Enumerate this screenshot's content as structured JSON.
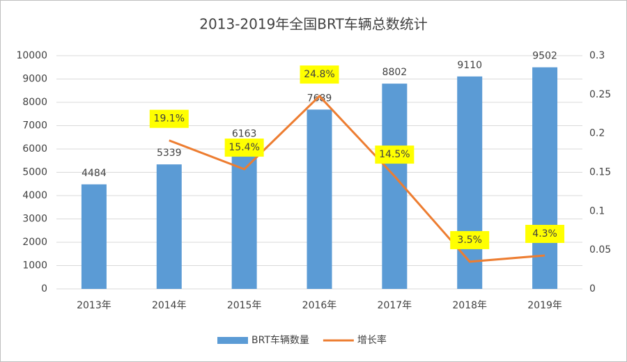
{
  "chart_data": {
    "type": "bar",
    "title": "2013-2019年全国BRT车辆总数统计",
    "categories": [
      "2013年",
      "2014年",
      "2015年",
      "2016年",
      "2017年",
      "2018年",
      "2019年"
    ],
    "series": [
      {
        "name": "BRT车辆数量",
        "type": "bar",
        "color": "#5b9bd5",
        "values": [
          4484,
          5339,
          6163,
          7689,
          8802,
          9110,
          9502
        ]
      },
      {
        "name": "增长率",
        "type": "line",
        "axis": "y2",
        "color": "#ed7d31",
        "values": [
          null,
          0.191,
          0.154,
          0.248,
          0.145,
          0.035,
          0.043
        ],
        "value_labels": [
          null,
          "19.1%",
          "15.4%",
          "24.8%",
          "14.5%",
          "3.5%",
          "4.3%"
        ]
      }
    ],
    "ylim": [
      0,
      10000
    ],
    "yticks": [
      0,
      1000,
      2000,
      3000,
      4000,
      5000,
      6000,
      7000,
      8000,
      9000,
      10000
    ],
    "y2lim": [
      0,
      0.3
    ],
    "y2ticks": [
      0,
      0.05,
      0.1,
      0.15,
      0.2,
      0.25,
      0.3
    ],
    "grid": true,
    "legend": "bottom"
  }
}
